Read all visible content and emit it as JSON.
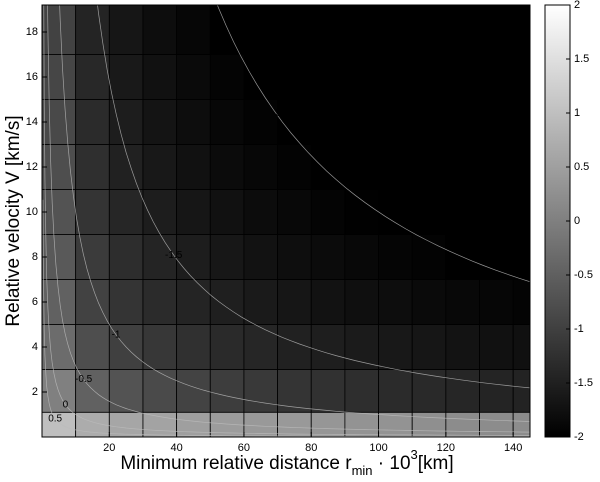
{
  "chart_data": {
    "type": "heatmap",
    "xlabel": [
      {
        "text": "Minimum relative distance r"
      },
      {
        "text": "min",
        "shift": "sub"
      },
      {
        "text": " · 10"
      },
      {
        "text": "3",
        "shift": "sup"
      },
      {
        "text": "[km]"
      }
    ],
    "ylabel": "Relative velocity V [km/s]",
    "xlim": [
      0,
      145
    ],
    "ylim": [
      0,
      19.2
    ],
    "xticks": [
      20,
      40,
      60,
      80,
      100,
      120,
      140
    ],
    "yticks": [
      2,
      4,
      6,
      8,
      10,
      12,
      14,
      16,
      18
    ],
    "x_edges": [
      0,
      10,
      20,
      30,
      40,
      50,
      60,
      70,
      80,
      90,
      100,
      110,
      120,
      130,
      140,
      145
    ],
    "y_edges": [
      0,
      1.1,
      3,
      5,
      7,
      9,
      11,
      13,
      15,
      17,
      19.2
    ],
    "z": [
      [
        1.0,
        0.7,
        0.6,
        0.55,
        0.5,
        0.45,
        0.4,
        0.4,
        0.35,
        0.3,
        0.3,
        0.25,
        0.2,
        0.2,
        0.2
      ],
      [
        0.0,
        -0.48,
        -0.7,
        -0.84,
        -0.95,
        -1.04,
        -1.11,
        -1.18,
        -1.23,
        -1.28,
        -1.32,
        -1.36,
        -1.4,
        -1.43,
        -1.45
      ],
      [
        -0.3,
        -0.78,
        -1.0,
        -1.14,
        -1.25,
        -1.34,
        -1.41,
        -1.48,
        -1.53,
        -1.58,
        -1.62,
        -1.66,
        -1.7,
        -1.73,
        -1.75
      ],
      [
        -0.48,
        -0.96,
        -1.18,
        -1.32,
        -1.43,
        -1.52,
        -1.59,
        -1.66,
        -1.71,
        -1.76,
        -1.8,
        -1.84,
        -1.88,
        -1.91,
        -1.93
      ],
      [
        -0.6,
        -1.08,
        -1.3,
        -1.44,
        -1.55,
        -1.64,
        -1.71,
        -1.78,
        -1.83,
        -1.88,
        -1.92,
        -1.96,
        -2.0,
        -2.03,
        -2.05
      ],
      [
        -0.7,
        -1.18,
        -1.4,
        -1.54,
        -1.65,
        -1.74,
        -1.81,
        -1.88,
        -1.93,
        -1.98,
        -2.02,
        -2.06,
        -2.1,
        -2.13,
        -2.15
      ],
      [
        -0.78,
        -1.26,
        -1.48,
        -1.62,
        -1.73,
        -1.82,
        -1.89,
        -1.96,
        -2.01,
        -2.06,
        -2.1,
        -2.14,
        -2.18,
        -2.21,
        -2.23
      ],
      [
        -0.85,
        -1.33,
        -1.55,
        -1.69,
        -1.8,
        -1.89,
        -1.96,
        -2.03,
        -2.08,
        -2.13,
        -2.17,
        -2.21,
        -2.25,
        -2.28,
        -2.3
      ],
      [
        -0.9,
        -1.38,
        -1.6,
        -1.74,
        -1.85,
        -1.94,
        -2.01,
        -2.08,
        -2.13,
        -2.18,
        -2.22,
        -2.26,
        -2.3,
        -2.33,
        -2.35
      ],
      [
        -0.96,
        -1.44,
        -1.66,
        -1.8,
        -1.91,
        -2.0,
        -2.07,
        -2.14,
        -2.19,
        -2.24,
        -2.28,
        -2.32,
        -2.36,
        -2.39,
        -2.41
      ]
    ],
    "clim": [
      -2,
      2
    ],
    "cticks": [
      -2,
      -1.5,
      -1,
      -0.5,
      0,
      0.5,
      1,
      1.5,
      2
    ],
    "contour_levels": [
      -2,
      -1.5,
      -1,
      -0.5,
      0,
      0.5
    ],
    "colormap": "gray"
  }
}
